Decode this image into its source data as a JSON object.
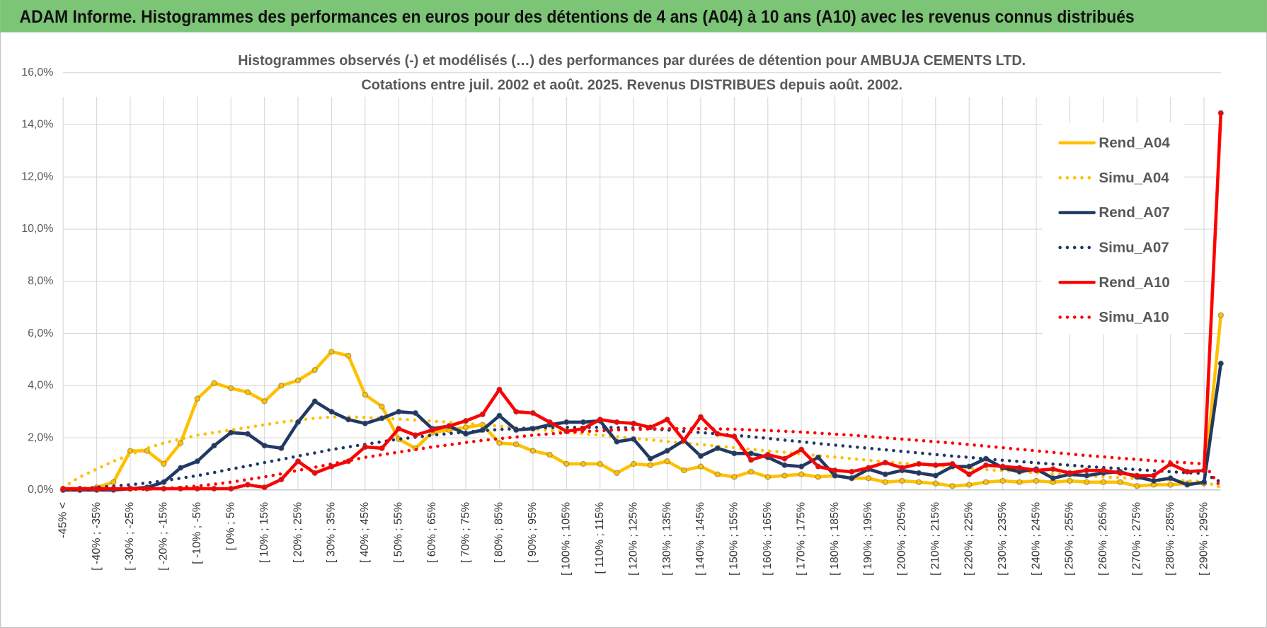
{
  "header": {
    "title": "ADAM Informe. Histogrammes des performances en euros pour des détentions de 4 ans (A04) à 10 ans (A10) avec les revenus connus distribués"
  },
  "chart_data": {
    "type": "line",
    "title": "Histogrammes observés (-) et modélisés (…) des performances par durées de détention pour AMBUJA CEMENTS LTD.",
    "subtitle": "Cotations entre juil. 2002 et août. 2025. Revenus DISTRIBUES depuis août. 2002.",
    "categories": [
      "-45% <",
      null,
      "[ -40% ; -35%",
      null,
      "[ -30% ; -25%",
      null,
      "[ -20% ; -15%",
      null,
      "[ -10% ; -5%",
      null,
      "[ 0% ; 5%",
      null,
      "[ 10% ; 15%",
      null,
      "[ 20% ; 25%",
      null,
      "[ 30% ; 35%",
      null,
      "[ 40% ; 45%",
      null,
      "[ 50% ; 55%",
      null,
      "[ 60% ; 65%",
      null,
      "[ 70% ; 75%",
      null,
      "[ 80% ; 85%",
      null,
      "[ 90% ; 95%",
      null,
      "[ 100% ; 105%",
      null,
      "[ 110% ; 115%",
      null,
      "[ 120% ; 125%",
      null,
      "[ 130% ; 135%",
      null,
      "[ 140% ; 145%",
      null,
      "[ 150% ; 155%",
      null,
      "[ 160% ; 165%",
      null,
      "[ 170% ; 175%",
      null,
      "[ 180% ; 185%",
      null,
      "[ 190% ; 195%",
      null,
      "[ 200% ; 205%",
      null,
      "[ 210% ; 215%",
      null,
      "[ 220% ; 225%",
      null,
      "[ 230% ; 235%",
      null,
      "[ 240% ; 245%",
      null,
      "[ 250% ; 255%",
      null,
      "[ 260% ; 265%",
      null,
      "[ 270% ; 275%",
      null,
      "[ 280% ; 285%",
      null,
      "[ 290% ; 295%",
      null
    ],
    "series": [
      {
        "name": "Rend_A04",
        "color": "#FFC000",
        "line_style": "solid",
        "markers": true,
        "values": [
          0,
          0,
          0.1,
          0.3,
          1.5,
          1.5,
          1.0,
          1.8,
          3.5,
          4.1,
          3.9,
          3.75,
          3.4,
          4.0,
          4.2,
          4.6,
          5.3,
          5.15,
          3.65,
          3.2,
          1.95,
          1.6,
          2.2,
          2.3,
          2.4,
          2.5,
          1.8,
          1.75,
          1.5,
          1.35,
          1.0,
          1.0,
          1.0,
          0.65,
          1.0,
          0.95,
          1.1,
          0.75,
          0.9,
          0.6,
          0.5,
          0.7,
          0.5,
          0.55,
          0.6,
          0.5,
          0.55,
          0.45,
          0.45,
          0.3,
          0.35,
          0.3,
          0.25,
          0.15,
          0.2,
          0.3,
          0.35,
          0.3,
          0.35,
          0.3,
          0.35,
          0.3,
          0.3,
          0.3,
          0.15,
          0.2,
          0.2,
          0.25,
          0.25,
          6.7
        ]
      },
      {
        "name": "Simu_A04",
        "color": "#FFC000",
        "line_style": "dotted",
        "markers": false,
        "values": [
          0.1,
          0.5,
          0.8,
          1.1,
          1.35,
          1.6,
          1.8,
          1.95,
          2.1,
          2.2,
          2.3,
          2.4,
          2.5,
          2.6,
          2.68,
          2.75,
          2.8,
          2.8,
          2.78,
          2.75,
          2.72,
          2.68,
          2.64,
          2.6,
          2.55,
          2.5,
          2.45,
          2.4,
          2.34,
          2.28,
          2.22,
          2.16,
          2.1,
          2.04,
          1.98,
          1.92,
          1.86,
          1.8,
          1.74,
          1.68,
          1.62,
          1.56,
          1.5,
          1.44,
          1.38,
          1.32,
          1.26,
          1.2,
          1.14,
          1.08,
          1.03,
          0.98,
          0.93,
          0.88,
          0.83,
          0.78,
          0.74,
          0.7,
          0.66,
          0.62,
          0.58,
          0.54,
          0.5,
          0.47,
          0.44,
          0.41,
          0.38,
          0.35,
          0.32,
          0.1
        ]
      },
      {
        "name": "Rend_A07",
        "color": "#1F3864",
        "line_style": "solid",
        "markers": true,
        "values": [
          0,
          0,
          0,
          0,
          0.05,
          0.1,
          0.3,
          0.85,
          1.1,
          1.7,
          2.2,
          2.15,
          1.7,
          1.6,
          2.6,
          3.4,
          3.0,
          2.7,
          2.55,
          2.75,
          3.0,
          2.95,
          2.35,
          2.45,
          2.15,
          2.3,
          2.85,
          2.3,
          2.35,
          2.5,
          2.6,
          2.6,
          2.65,
          1.85,
          1.95,
          1.2,
          1.5,
          1.9,
          1.3,
          1.6,
          1.4,
          1.4,
          1.25,
          0.95,
          0.9,
          1.25,
          0.55,
          0.45,
          0.8,
          0.6,
          0.75,
          0.65,
          0.55,
          0.9,
          0.9,
          1.2,
          0.85,
          0.7,
          0.8,
          0.45,
          0.6,
          0.55,
          0.65,
          0.7,
          0.5,
          0.35,
          0.45,
          0.2,
          0.3,
          4.85
        ]
      },
      {
        "name": "Simu_A07",
        "color": "#1F3864",
        "line_style": "dotted",
        "markers": false,
        "values": [
          0,
          0.05,
          0.1,
          0.15,
          0.2,
          0.27,
          0.35,
          0.45,
          0.55,
          0.67,
          0.8,
          0.92,
          1.05,
          1.17,
          1.3,
          1.42,
          1.55,
          1.65,
          1.75,
          1.85,
          1.95,
          2.02,
          2.1,
          2.16,
          2.22,
          2.27,
          2.32,
          2.35,
          2.38,
          2.39,
          2.4,
          2.4,
          2.4,
          2.39,
          2.38,
          2.34,
          2.3,
          2.25,
          2.2,
          2.15,
          2.1,
          2.04,
          1.98,
          1.91,
          1.85,
          1.78,
          1.72,
          1.66,
          1.6,
          1.54,
          1.48,
          1.42,
          1.36,
          1.3,
          1.25,
          1.19,
          1.14,
          1.09,
          1.04,
          0.99,
          0.95,
          0.9,
          0.86,
          0.82,
          0.78,
          0.74,
          0.7,
          0.66,
          0.63,
          0.3
        ]
      },
      {
        "name": "Rend_A10",
        "color": "#FF0000",
        "line_style": "solid",
        "markers": true,
        "values": [
          0.05,
          0.05,
          0.05,
          0.05,
          0.05,
          0.05,
          0.05,
          0.05,
          0.05,
          0.05,
          0.05,
          0.2,
          0.1,
          0.4,
          1.1,
          0.65,
          0.9,
          1.1,
          1.65,
          1.6,
          2.35,
          2.1,
          2.3,
          2.45,
          2.65,
          2.9,
          3.85,
          3.0,
          2.95,
          2.6,
          2.25,
          2.35,
          2.7,
          2.6,
          2.55,
          2.4,
          2.7,
          1.9,
          2.8,
          2.15,
          2.05,
          1.15,
          1.35,
          1.2,
          1.55,
          0.9,
          0.75,
          0.7,
          0.85,
          1.05,
          0.85,
          1.0,
          0.95,
          1.0,
          0.6,
          0.95,
          0.9,
          0.85,
          0.75,
          0.8,
          0.65,
          0.75,
          0.75,
          0.65,
          0.55,
          0.55,
          1.0,
          0.7,
          0.75,
          14.45
        ]
      },
      {
        "name": "Simu_A10",
        "color": "#FF0000",
        "line_style": "dotted",
        "markers": false,
        "values": [
          0,
          0,
          0,
          0.01,
          0.02,
          0.03,
          0.05,
          0.1,
          0.15,
          0.22,
          0.3,
          0.4,
          0.5,
          0.62,
          0.75,
          0.87,
          1.0,
          1.12,
          1.25,
          1.35,
          1.45,
          1.55,
          1.65,
          1.73,
          1.82,
          1.9,
          1.97,
          2.03,
          2.1,
          2.15,
          2.2,
          2.24,
          2.27,
          2.3,
          2.32,
          2.34,
          2.35,
          2.35,
          2.35,
          2.34,
          2.33,
          2.3,
          2.28,
          2.25,
          2.22,
          2.18,
          2.14,
          2.1,
          2.05,
          2.0,
          1.95,
          1.9,
          1.85,
          1.8,
          1.74,
          1.68,
          1.62,
          1.56,
          1.5,
          1.44,
          1.38,
          1.32,
          1.27,
          1.22,
          1.17,
          1.12,
          1.08,
          1.04,
          1.0,
          0.1
        ]
      }
    ],
    "ylim": [
      0,
      16
    ],
    "yticks": [
      {
        "value": 0,
        "label": "0,0%"
      },
      {
        "value": 2,
        "label": "2,0%"
      },
      {
        "value": 4,
        "label": "4,0%"
      },
      {
        "value": 6,
        "label": "6,0%"
      },
      {
        "value": 8,
        "label": "8,0%"
      },
      {
        "value": 10,
        "label": "10,0%"
      },
      {
        "value": 12,
        "label": "12,0%"
      },
      {
        "value": 14,
        "label": "14,0%"
      },
      {
        "value": 16,
        "label": "16,0%"
      }
    ],
    "grid": true,
    "legend": "upper right"
  }
}
